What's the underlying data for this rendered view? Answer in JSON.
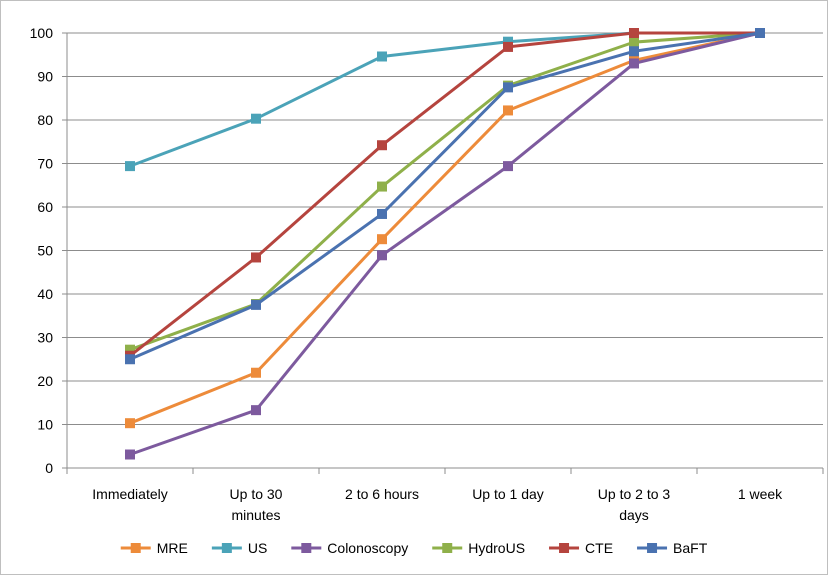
{
  "chart_data": {
    "type": "line",
    "title": "",
    "xlabel": "",
    "ylabel": "",
    "ylim": [
      0,
      100
    ],
    "y_ticks": [
      "0",
      "10",
      "20",
      "30",
      "40",
      "50",
      "60",
      "70",
      "80",
      "90",
      "100"
    ],
    "grid": "horizontal",
    "legend_position": "bottom",
    "categories": [
      [
        "Immediately"
      ],
      [
        "Up to 30",
        "minutes"
      ],
      [
        "2 to 6 hours"
      ],
      [
        "Up to 1 day"
      ],
      [
        "Up to 2 to 3",
        "days"
      ],
      [
        "1 week"
      ]
    ],
    "series": [
      {
        "name": "MRE",
        "color": "#ED8B3A",
        "values": [
          10.3,
          21.9,
          52.6,
          82.2,
          93.7,
          100
        ]
      },
      {
        "name": "US",
        "color": "#4BA3B8",
        "values": [
          69.4,
          80.3,
          94.6,
          98.0,
          100,
          100
        ]
      },
      {
        "name": "Colonoscopy",
        "color": "#7D5A9E",
        "values": [
          3.1,
          13.3,
          48.9,
          69.4,
          93.0,
          100
        ]
      },
      {
        "name": "HydroUS",
        "color": "#8FB04A",
        "values": [
          27.2,
          37.7,
          64.7,
          87.9,
          97.9,
          100
        ]
      },
      {
        "name": "CTE",
        "color": "#B5443E",
        "values": [
          25.8,
          48.4,
          74.2,
          96.8,
          100,
          100
        ]
      },
      {
        "name": "BaFT",
        "color": "#4A72B0",
        "values": [
          25.0,
          37.5,
          58.4,
          87.5,
          95.8,
          100
        ]
      }
    ]
  }
}
